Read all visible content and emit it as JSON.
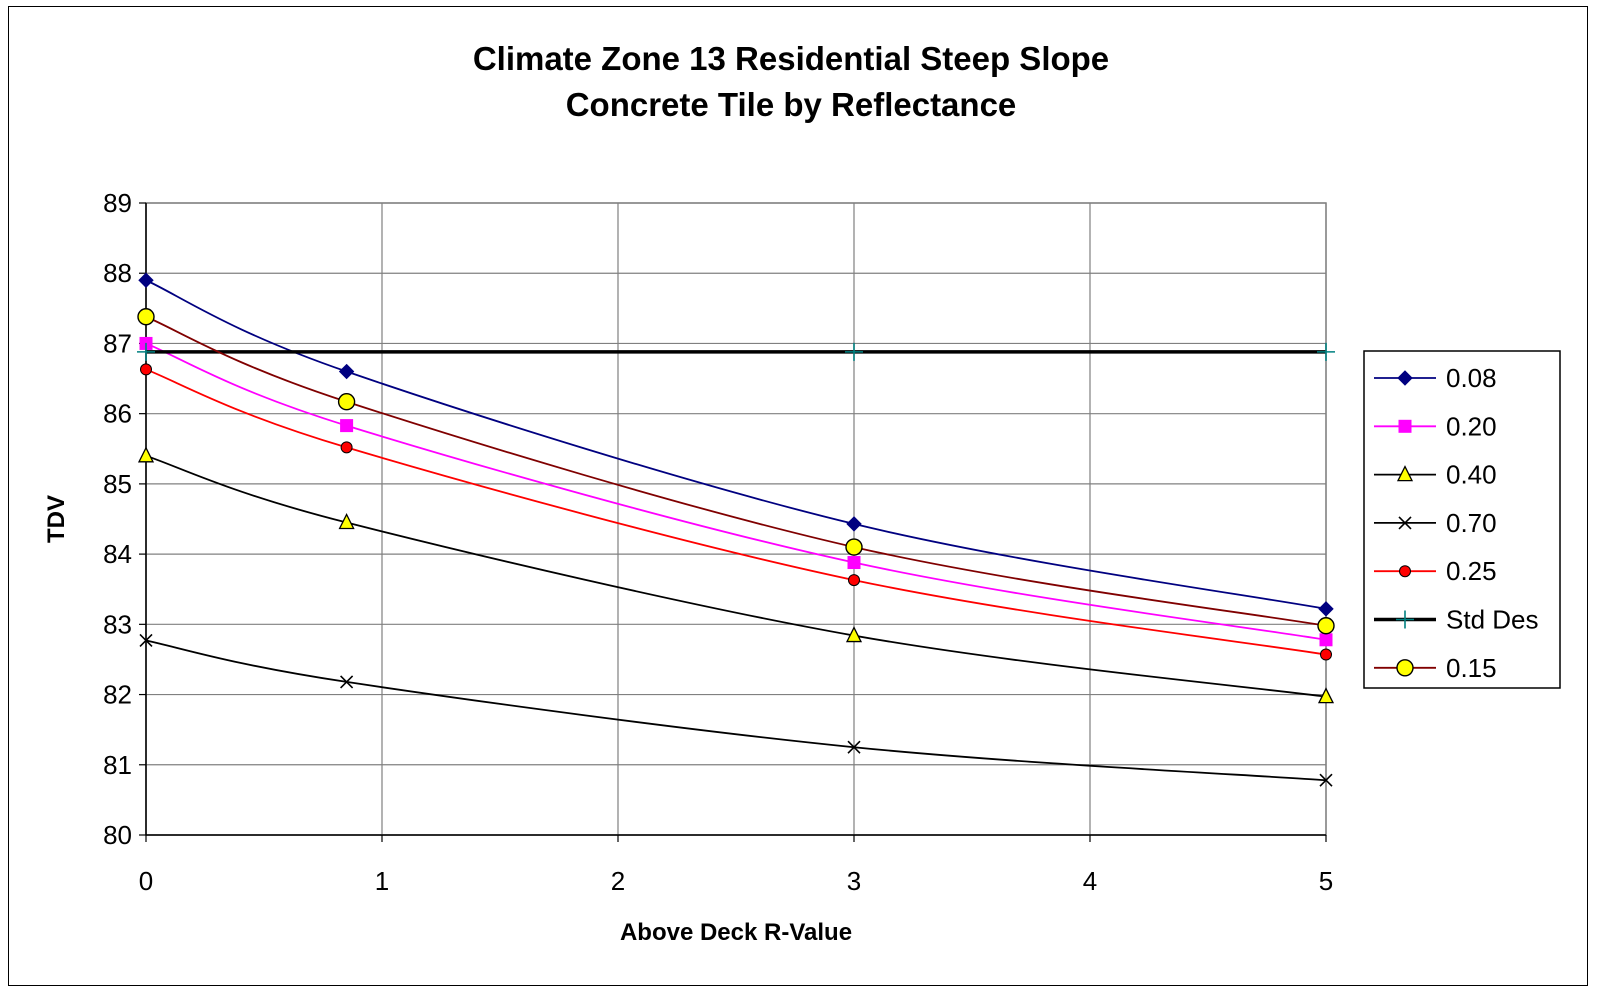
{
  "chart_data": {
    "type": "line",
    "title_lines": [
      "Climate Zone 13 Residential Steep Slope",
      "Concrete Tile by Reflectance"
    ],
    "xlabel": "Above Deck R-Value",
    "ylabel": "TDV",
    "xlim": [
      0,
      5
    ],
    "ylim": [
      80,
      89
    ],
    "x_ticks": [
      "0",
      "1",
      "2",
      "3",
      "4",
      "5"
    ],
    "y_ticks": [
      "80",
      "81",
      "82",
      "83",
      "84",
      "85",
      "86",
      "87",
      "88",
      "89"
    ],
    "grid": true,
    "legend_position": "right",
    "series": [
      {
        "name": "0.08",
        "color": "#000080",
        "marker": "diamond",
        "x": [
          0,
          0.85,
          3,
          5
        ],
        "values": [
          87.9,
          86.6,
          84.43,
          83.22
        ]
      },
      {
        "name": "0.20",
        "color": "#FF00FF",
        "marker": "square",
        "x": [
          0,
          0.85,
          3,
          5
        ],
        "values": [
          87.0,
          85.83,
          83.88,
          82.78
        ]
      },
      {
        "name": "0.40",
        "color": "#000000",
        "marker": "triangle",
        "marker_fill": "#FFFF00",
        "x": [
          0,
          0.85,
          3,
          5
        ],
        "values": [
          85.4,
          84.45,
          82.84,
          81.97
        ]
      },
      {
        "name": "0.70",
        "color": "#000000",
        "marker": "x",
        "x": [
          0,
          0.85,
          3,
          5
        ],
        "values": [
          82.77,
          82.18,
          81.25,
          80.78
        ]
      },
      {
        "name": "0.25",
        "color": "#FF0000",
        "marker": "circle-small",
        "marker_fill": "#FF0000",
        "x": [
          0,
          0.85,
          3,
          5
        ],
        "values": [
          86.63,
          85.52,
          83.63,
          82.57
        ]
      },
      {
        "name": "Std Des",
        "color": "#000000",
        "marker": "plus",
        "marker_color": "#008080",
        "line_weight": "heavy",
        "x": [
          0,
          3,
          5
        ],
        "values": [
          86.88,
          86.88,
          86.88
        ]
      },
      {
        "name": "0.15",
        "color": "#800000",
        "marker": "circle",
        "marker_fill": "#FFFF00",
        "x": [
          0,
          0.85,
          3,
          5
        ],
        "values": [
          87.38,
          86.17,
          84.1,
          82.98
        ]
      }
    ]
  }
}
